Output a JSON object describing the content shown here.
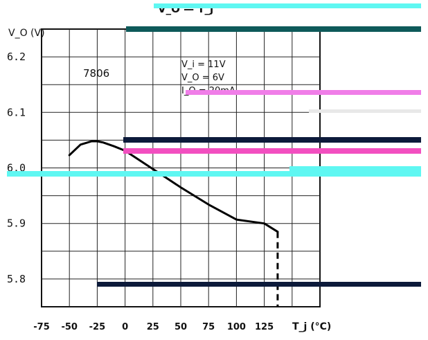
{
  "chart_data": {
    "type": "line",
    "title": "V_O — T_j",
    "ylabel": "V_O (V)",
    "xlabel": "T_j (°C)",
    "xlim": [
      -75,
      175
    ],
    "ylim": [
      5.75,
      6.25
    ],
    "x_ticks": [
      "-75",
      "-50",
      "-25",
      "0",
      "25",
      "50",
      "75",
      "100",
      "125"
    ],
    "y_ticks": [
      "6.2",
      "6.1",
      "6.0",
      "5.9",
      "5.8"
    ],
    "grid": true,
    "annotations": {
      "device": "7806",
      "vi": "V_i = 11V",
      "vo": "V_O = 6V",
      "io": "I_O = 20mA"
    },
    "series": [
      {
        "style": "solid",
        "x": [
          -50,
          -40,
          -30,
          -25,
          -20,
          -10,
          0,
          25,
          50,
          75,
          100,
          125,
          137
        ],
        "y": [
          6.023,
          6.042,
          6.048,
          6.048,
          6.046,
          6.039,
          6.031,
          5.998,
          5.965,
          5.934,
          5.907,
          5.9,
          5.885
        ]
      },
      {
        "style": "dashed",
        "x": [
          137,
          137
        ],
        "y": [
          5.885,
          5.75
        ]
      }
    ]
  },
  "colors": {
    "axis": "#111111",
    "grid": "#222222",
    "curve": "#000000",
    "artifact_cyan": "#5ff7f2",
    "artifact_navy": "#0c1a3a",
    "artifact_teal": "#0e5a5a",
    "artifact_pink": "#f24fc0",
    "artifact_magenta": "#f07ee8"
  }
}
